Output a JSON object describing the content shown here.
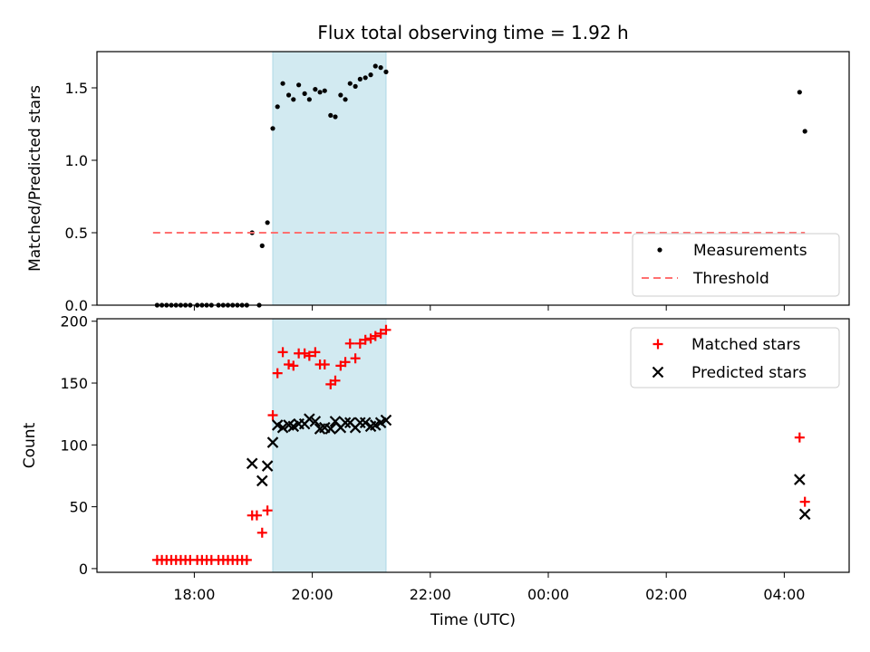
{
  "chart_data": {
    "type": "scatter",
    "title": "Flux total observing time = 1.92 h",
    "xlabel": "Time (UTC)",
    "x_unit": "hours since 17:00 UTC (values above 7 are past midnight)",
    "xlim": [
      -0.65,
      12.1
    ],
    "xticks": [
      {
        "value": 1,
        "label": "18:00"
      },
      {
        "value": 3,
        "label": "20:00"
      },
      {
        "value": 5,
        "label": "22:00"
      },
      {
        "value": 7,
        "label": "00:00"
      },
      {
        "value": 9,
        "label": "02:00"
      },
      {
        "value": 11,
        "label": "04:00"
      }
    ],
    "shaded_region": {
      "x_start": 2.33,
      "x_end": 4.25,
      "color": "#add8e6"
    },
    "panels": [
      {
        "ylabel": "Matched/Predicted stars",
        "ylim": [
          0,
          1.75
        ],
        "yticks": [
          {
            "value": 0,
            "label": "0.0"
          },
          {
            "value": 0.5,
            "label": "0.5"
          },
          {
            "value": 1.0,
            "label": "1.0"
          },
          {
            "value": 1.5,
            "label": "1.5"
          }
        ],
        "legend_position": "lower-right",
        "series": [
          {
            "name": "Measurements",
            "marker": "dot",
            "color": "#000000",
            "points": [
              [
                0.37,
                0
              ],
              [
                0.45,
                0
              ],
              [
                0.53,
                0
              ],
              [
                0.61,
                0
              ],
              [
                0.69,
                0
              ],
              [
                0.77,
                0
              ],
              [
                0.85,
                0
              ],
              [
                0.93,
                0
              ],
              [
                1.05,
                0
              ],
              [
                1.13,
                0
              ],
              [
                1.21,
                0
              ],
              [
                1.29,
                0
              ],
              [
                1.41,
                0
              ],
              [
                1.49,
                0
              ],
              [
                1.57,
                0
              ],
              [
                1.65,
                0
              ],
              [
                1.73,
                0
              ],
              [
                1.81,
                0
              ],
              [
                1.89,
                0
              ],
              [
                2.1,
                0
              ],
              [
                1.98,
                0.5
              ],
              [
                2.15,
                0.41
              ],
              [
                2.24,
                0.57
              ],
              [
                2.33,
                1.22
              ],
              [
                2.41,
                1.37
              ],
              [
                2.5,
                1.53
              ],
              [
                2.6,
                1.45
              ],
              [
                2.68,
                1.42
              ],
              [
                2.77,
                1.52
              ],
              [
                2.87,
                1.46
              ],
              [
                2.95,
                1.42
              ],
              [
                3.05,
                1.49
              ],
              [
                3.13,
                1.47
              ],
              [
                3.21,
                1.48
              ],
              [
                3.31,
                1.31
              ],
              [
                3.39,
                1.3
              ],
              [
                3.48,
                1.45
              ],
              [
                3.56,
                1.42
              ],
              [
                3.64,
                1.53
              ],
              [
                3.73,
                1.51
              ],
              [
                3.81,
                1.56
              ],
              [
                3.9,
                1.57
              ],
              [
                3.99,
                1.59
              ],
              [
                4.07,
                1.65
              ],
              [
                4.16,
                1.64
              ],
              [
                4.25,
                1.61
              ],
              [
                11.26,
                1.47
              ],
              [
                11.35,
                1.2
              ]
            ]
          },
          {
            "name": "Threshold",
            "style": "dashed",
            "color": "#ff7070",
            "points": [
              [
                0.3,
                0.5
              ],
              [
                11.35,
                0.5
              ]
            ]
          }
        ]
      },
      {
        "ylabel": "Count",
        "ylim": [
          -3,
          202
        ],
        "yticks": [
          {
            "value": 0,
            "label": "0"
          },
          {
            "value": 50,
            "label": "50"
          },
          {
            "value": 100,
            "label": "100"
          },
          {
            "value": 150,
            "label": "150"
          },
          {
            "value": 200,
            "label": "200"
          }
        ],
        "legend_position": "upper-right",
        "series": [
          {
            "name": "Matched stars",
            "marker": "plus",
            "color": "#ff0000",
            "points": [
              [
                0.37,
                7
              ],
              [
                0.45,
                7
              ],
              [
                0.53,
                7
              ],
              [
                0.61,
                7
              ],
              [
                0.69,
                7
              ],
              [
                0.77,
                7
              ],
              [
                0.85,
                7
              ],
              [
                0.93,
                7
              ],
              [
                1.05,
                7
              ],
              [
                1.13,
                7
              ],
              [
                1.21,
                7
              ],
              [
                1.29,
                7
              ],
              [
                1.41,
                7
              ],
              [
                1.49,
                7
              ],
              [
                1.57,
                7
              ],
              [
                1.65,
                7
              ],
              [
                1.73,
                7
              ],
              [
                1.81,
                7
              ],
              [
                1.89,
                7
              ],
              [
                1.98,
                43
              ],
              [
                2.06,
                43
              ],
              [
                2.15,
                29
              ],
              [
                2.24,
                47
              ],
              [
                2.33,
                124
              ],
              [
                2.41,
                158
              ],
              [
                2.5,
                175
              ],
              [
                2.6,
                165
              ],
              [
                2.68,
                164
              ],
              [
                2.77,
                174
              ],
              [
                2.87,
                174
              ],
              [
                2.95,
                172
              ],
              [
                3.05,
                175
              ],
              [
                3.13,
                165
              ],
              [
                3.21,
                165
              ],
              [
                3.31,
                149
              ],
              [
                3.39,
                152
              ],
              [
                3.48,
                164
              ],
              [
                3.56,
                167
              ],
              [
                3.64,
                182
              ],
              [
                3.73,
                170
              ],
              [
                3.81,
                182
              ],
              [
                3.9,
                185
              ],
              [
                3.99,
                186
              ],
              [
                4.07,
                188
              ],
              [
                4.16,
                190
              ],
              [
                4.25,
                193
              ],
              [
                11.26,
                106
              ],
              [
                11.35,
                54
              ]
            ]
          },
          {
            "name": "Predicted stars",
            "marker": "x",
            "color": "#000000",
            "points": [
              [
                1.98,
                85
              ],
              [
                2.15,
                71
              ],
              [
                2.24,
                83
              ],
              [
                2.33,
                102
              ],
              [
                2.41,
                116
              ],
              [
                2.5,
                114
              ],
              [
                2.6,
                116
              ],
              [
                2.68,
                115
              ],
              [
                2.77,
                117
              ],
              [
                2.87,
                117
              ],
              [
                2.95,
                121
              ],
              [
                3.05,
                119
              ],
              [
                3.13,
                113
              ],
              [
                3.21,
                114
              ],
              [
                3.31,
                113
              ],
              [
                3.39,
                119
              ],
              [
                3.48,
                114
              ],
              [
                3.56,
                118
              ],
              [
                3.64,
                118
              ],
              [
                3.73,
                114
              ],
              [
                3.81,
                118
              ],
              [
                3.9,
                118
              ],
              [
                3.99,
                115
              ],
              [
                4.07,
                116
              ],
              [
                4.16,
                118
              ],
              [
                4.25,
                120
              ],
              [
                11.26,
                72
              ],
              [
                11.35,
                44
              ]
            ]
          }
        ]
      }
    ]
  }
}
